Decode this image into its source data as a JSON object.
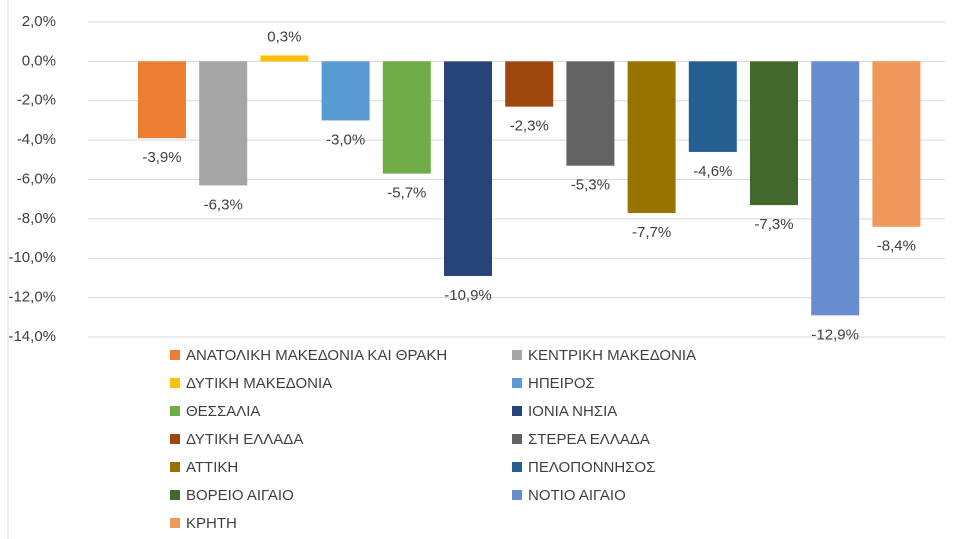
{
  "chart_data": {
    "type": "bar",
    "ylim": [
      -14,
      2
    ],
    "yticks": [
      {
        "value": 2,
        "label": "2,0%"
      },
      {
        "value": 0,
        "label": "0,0%"
      },
      {
        "value": -2,
        "label": "-2,0%"
      },
      {
        "value": -4,
        "label": "-4,0%"
      },
      {
        "value": -6,
        "label": "-6,0%"
      },
      {
        "value": -8,
        "label": "-8,0%"
      },
      {
        "value": -10,
        "label": "-10,0%"
      },
      {
        "value": -12,
        "label": "-12,0%"
      },
      {
        "value": -14,
        "label": "-14,0%"
      }
    ],
    "grid": true,
    "legend": "bottom",
    "series": [
      {
        "name": "ΑΝΑΤΟΛΙΚΗ ΜΑΚΕΔΟΝΙΑ ΚΑΙ ΘΡΑΚΗ",
        "color": "#ED7D31",
        "values": [
          -3.9
        ],
        "value_labels": [
          "-3,9%"
        ]
      },
      {
        "name": "ΚΕΝΤΡΙΚΗ ΜΑΚΕΔΟΝΙΑ",
        "color": "#A5A5A5",
        "values": [
          -6.3
        ],
        "value_labels": [
          "-6,3%"
        ]
      },
      {
        "name": "ΔΥΤΙΚΗ ΜΑΚΕΔΟΝΙΑ",
        "color": "#FFC000",
        "values": [
          0.3
        ],
        "value_labels": [
          "0,3%"
        ]
      },
      {
        "name": "ΗΠΕΙΡΟΣ",
        "color": "#5B9BD5",
        "values": [
          -3.0
        ],
        "value_labels": [
          "-3,0%"
        ]
      },
      {
        "name": "ΘΕΣΣΑΛΙΑ",
        "color": "#70AD47",
        "values": [
          -5.7
        ],
        "value_labels": [
          "-5,7%"
        ]
      },
      {
        "name": "ΙΟΝΙΑ ΝΗΣΙΑ",
        "color": "#264478",
        "values": [
          -10.9
        ],
        "value_labels": [
          "-10,9%"
        ]
      },
      {
        "name": "ΔΥΤΙΚΗ ΕΛΛΑΔΑ",
        "color": "#9E480E",
        "values": [
          -2.3
        ],
        "value_labels": [
          "-2,3%"
        ]
      },
      {
        "name": "ΣΤΕΡΕΑ ΕΛΛΑΔΑ",
        "color": "#636363",
        "values": [
          -5.3
        ],
        "value_labels": [
          "-5,3%"
        ]
      },
      {
        "name": "ΑΤΤΙΚΗ",
        "color": "#997300",
        "values": [
          -7.7
        ],
        "value_labels": [
          "-7,7%"
        ]
      },
      {
        "name": "ΠΕΛΟΠΟΝΝΗΣΟΣ",
        "color": "#255E91",
        "values": [
          -4.6
        ],
        "value_labels": [
          "-4,6%"
        ]
      },
      {
        "name": "ΒΟΡΕΙΟ ΑΙΓΑΙΟ",
        "color": "#43682B",
        "values": [
          -7.3
        ],
        "value_labels": [
          "-7,3%"
        ]
      },
      {
        "name": "ΝΟΤΙΟ ΑΙΓΑΙΟ",
        "color": "#698ED0",
        "values": [
          -12.9
        ],
        "value_labels": [
          "-12,9%"
        ]
      },
      {
        "name": "ΚΡΗΤΗ",
        "color": "#F1975A",
        "values": [
          -8.4
        ],
        "value_labels": [
          "-8,4%"
        ]
      }
    ]
  }
}
